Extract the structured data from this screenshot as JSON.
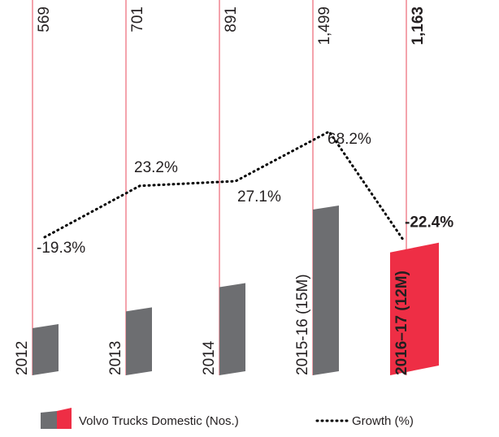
{
  "chart_data": {
    "type": "bar",
    "categories": [
      "2012",
      "2013",
      "2014",
      "2015-16 (15M)",
      "2016–17 (12M)"
    ],
    "series": [
      {
        "name": "Volvo Trucks Domestic (Nos.)",
        "color": "#6d6e71",
        "colors": [
          "#6d6e71",
          "#6d6e71",
          "#6d6e71",
          "#6d6e71",
          "#ee2e45"
        ],
        "values": [
          569,
          701,
          891,
          1499,
          1163
        ],
        "value_labels": [
          "569",
          "701",
          "891",
          "1,499",
          "1,163"
        ]
      },
      {
        "name": "Growth (%)",
        "type": "line",
        "axis": "y2",
        "color": "#000000",
        "values": [
          -19.3,
          23.2,
          27.1,
          68.2,
          -22.4
        ],
        "value_labels": [
          "-19.3%",
          "23.2%",
          "27.1%",
          "68.2%",
          "-22.4%"
        ]
      }
    ],
    "ylim": [
      200,
      1550
    ],
    "y2lim": [
      -40,
      80
    ]
  }
}
